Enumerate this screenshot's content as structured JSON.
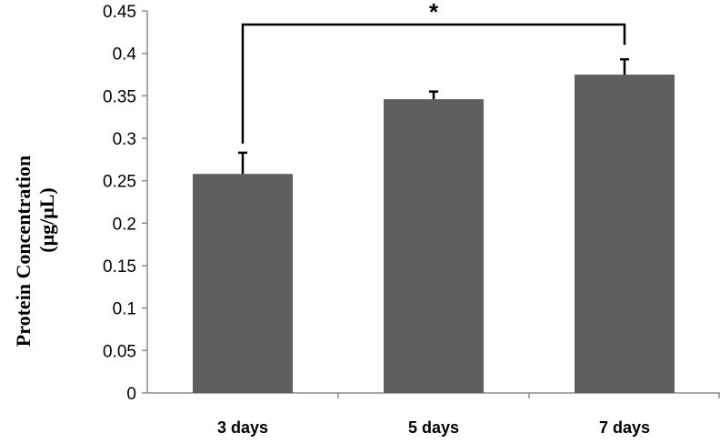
{
  "chart_data": {
    "type": "bar",
    "categories": [
      "3 days",
      "5 days",
      "7 days"
    ],
    "values": [
      0.258,
      0.346,
      0.375
    ],
    "errors": [
      0.025,
      0.009,
      0.018
    ],
    "ylabel_line1": "Protein Concentration",
    "ylabel_line2": "(μg/μL)",
    "ylim": [
      0,
      0.45
    ],
    "yticks": [
      0,
      0.05,
      0.1,
      0.15,
      0.2,
      0.25,
      0.3,
      0.35,
      0.4,
      0.45
    ],
    "ytick_labels": [
      "0",
      "0.05",
      "0.1",
      "0.15",
      "0.2",
      "0.25",
      "0.3",
      "0.35",
      "0.4",
      "0.45"
    ],
    "grid": false,
    "significance": {
      "from": "3 days",
      "to": "7 days",
      "label": "*"
    },
    "bar_color": "#5f5f5f",
    "axis_color": "#8c8c8c"
  }
}
